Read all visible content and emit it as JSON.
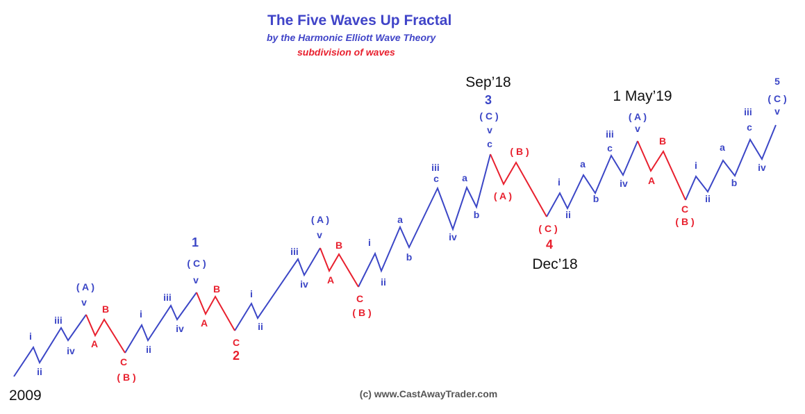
{
  "header": {
    "title": "The Five Waves Up Fractal",
    "subtitle": "by the Harmonic Elliott Wave Theory",
    "note": "subdivision of waves"
  },
  "dates": {
    "start": "2009",
    "wave3": "Sep’18",
    "wave4": "Dec’18",
    "may19": "1 May’19"
  },
  "degree_labels": {
    "w1": "1",
    "w2": "2",
    "w3": "3",
    "w4": "4",
    "w5": "5"
  },
  "colors": {
    "impulse": "#3b46c6",
    "correction": "#e8202e",
    "title": "#4044c8"
  },
  "wave_labels": {
    "l01": "i",
    "l02": "ii",
    "l03": "iii",
    "l04": "iv",
    "l05": "v",
    "l06": "( A )",
    "l07": "A",
    "l08": "B",
    "l09": "C",
    "l10": "( B )",
    "l11": "i",
    "l12": "ii",
    "l13": "iii",
    "l14": "iv",
    "l15": "v",
    "l16": "( C )",
    "l17": "A",
    "l18": "B",
    "l19": "C",
    "l20": "i",
    "l21": "ii",
    "l22": "iii",
    "l23": "iv",
    "l24": "v",
    "l25": "( A )",
    "l26": "A",
    "l27": "B",
    "l28": "C",
    "l29": "( B )",
    "l30": "i",
    "l31": "ii",
    "l32": "a",
    "l33": "b",
    "l34": "iii",
    "l35": "c",
    "l36": "iv",
    "l37": "a",
    "l38": "b",
    "l39": "c",
    "l40": "v",
    "l41": "( C )",
    "l42": "( A )",
    "l43": "( B )",
    "l44": "( C )",
    "l45": "i",
    "l46": "ii",
    "l47": "a",
    "l48": "b",
    "l49": "iii",
    "l50": "c",
    "l51": "iv",
    "l52": "v",
    "l53": "( A )",
    "l54": "A",
    "l55": "B",
    "l56": "C",
    "l57": "( B )",
    "l58": "i",
    "l59": "ii",
    "l60": "a",
    "l61": "b",
    "l62": "iii",
    "l63": "c",
    "l64": "iv",
    "l65": "v",
    "l66": "( C )"
  },
  "copyright": "(c) www.CastAwayTrader.com"
}
